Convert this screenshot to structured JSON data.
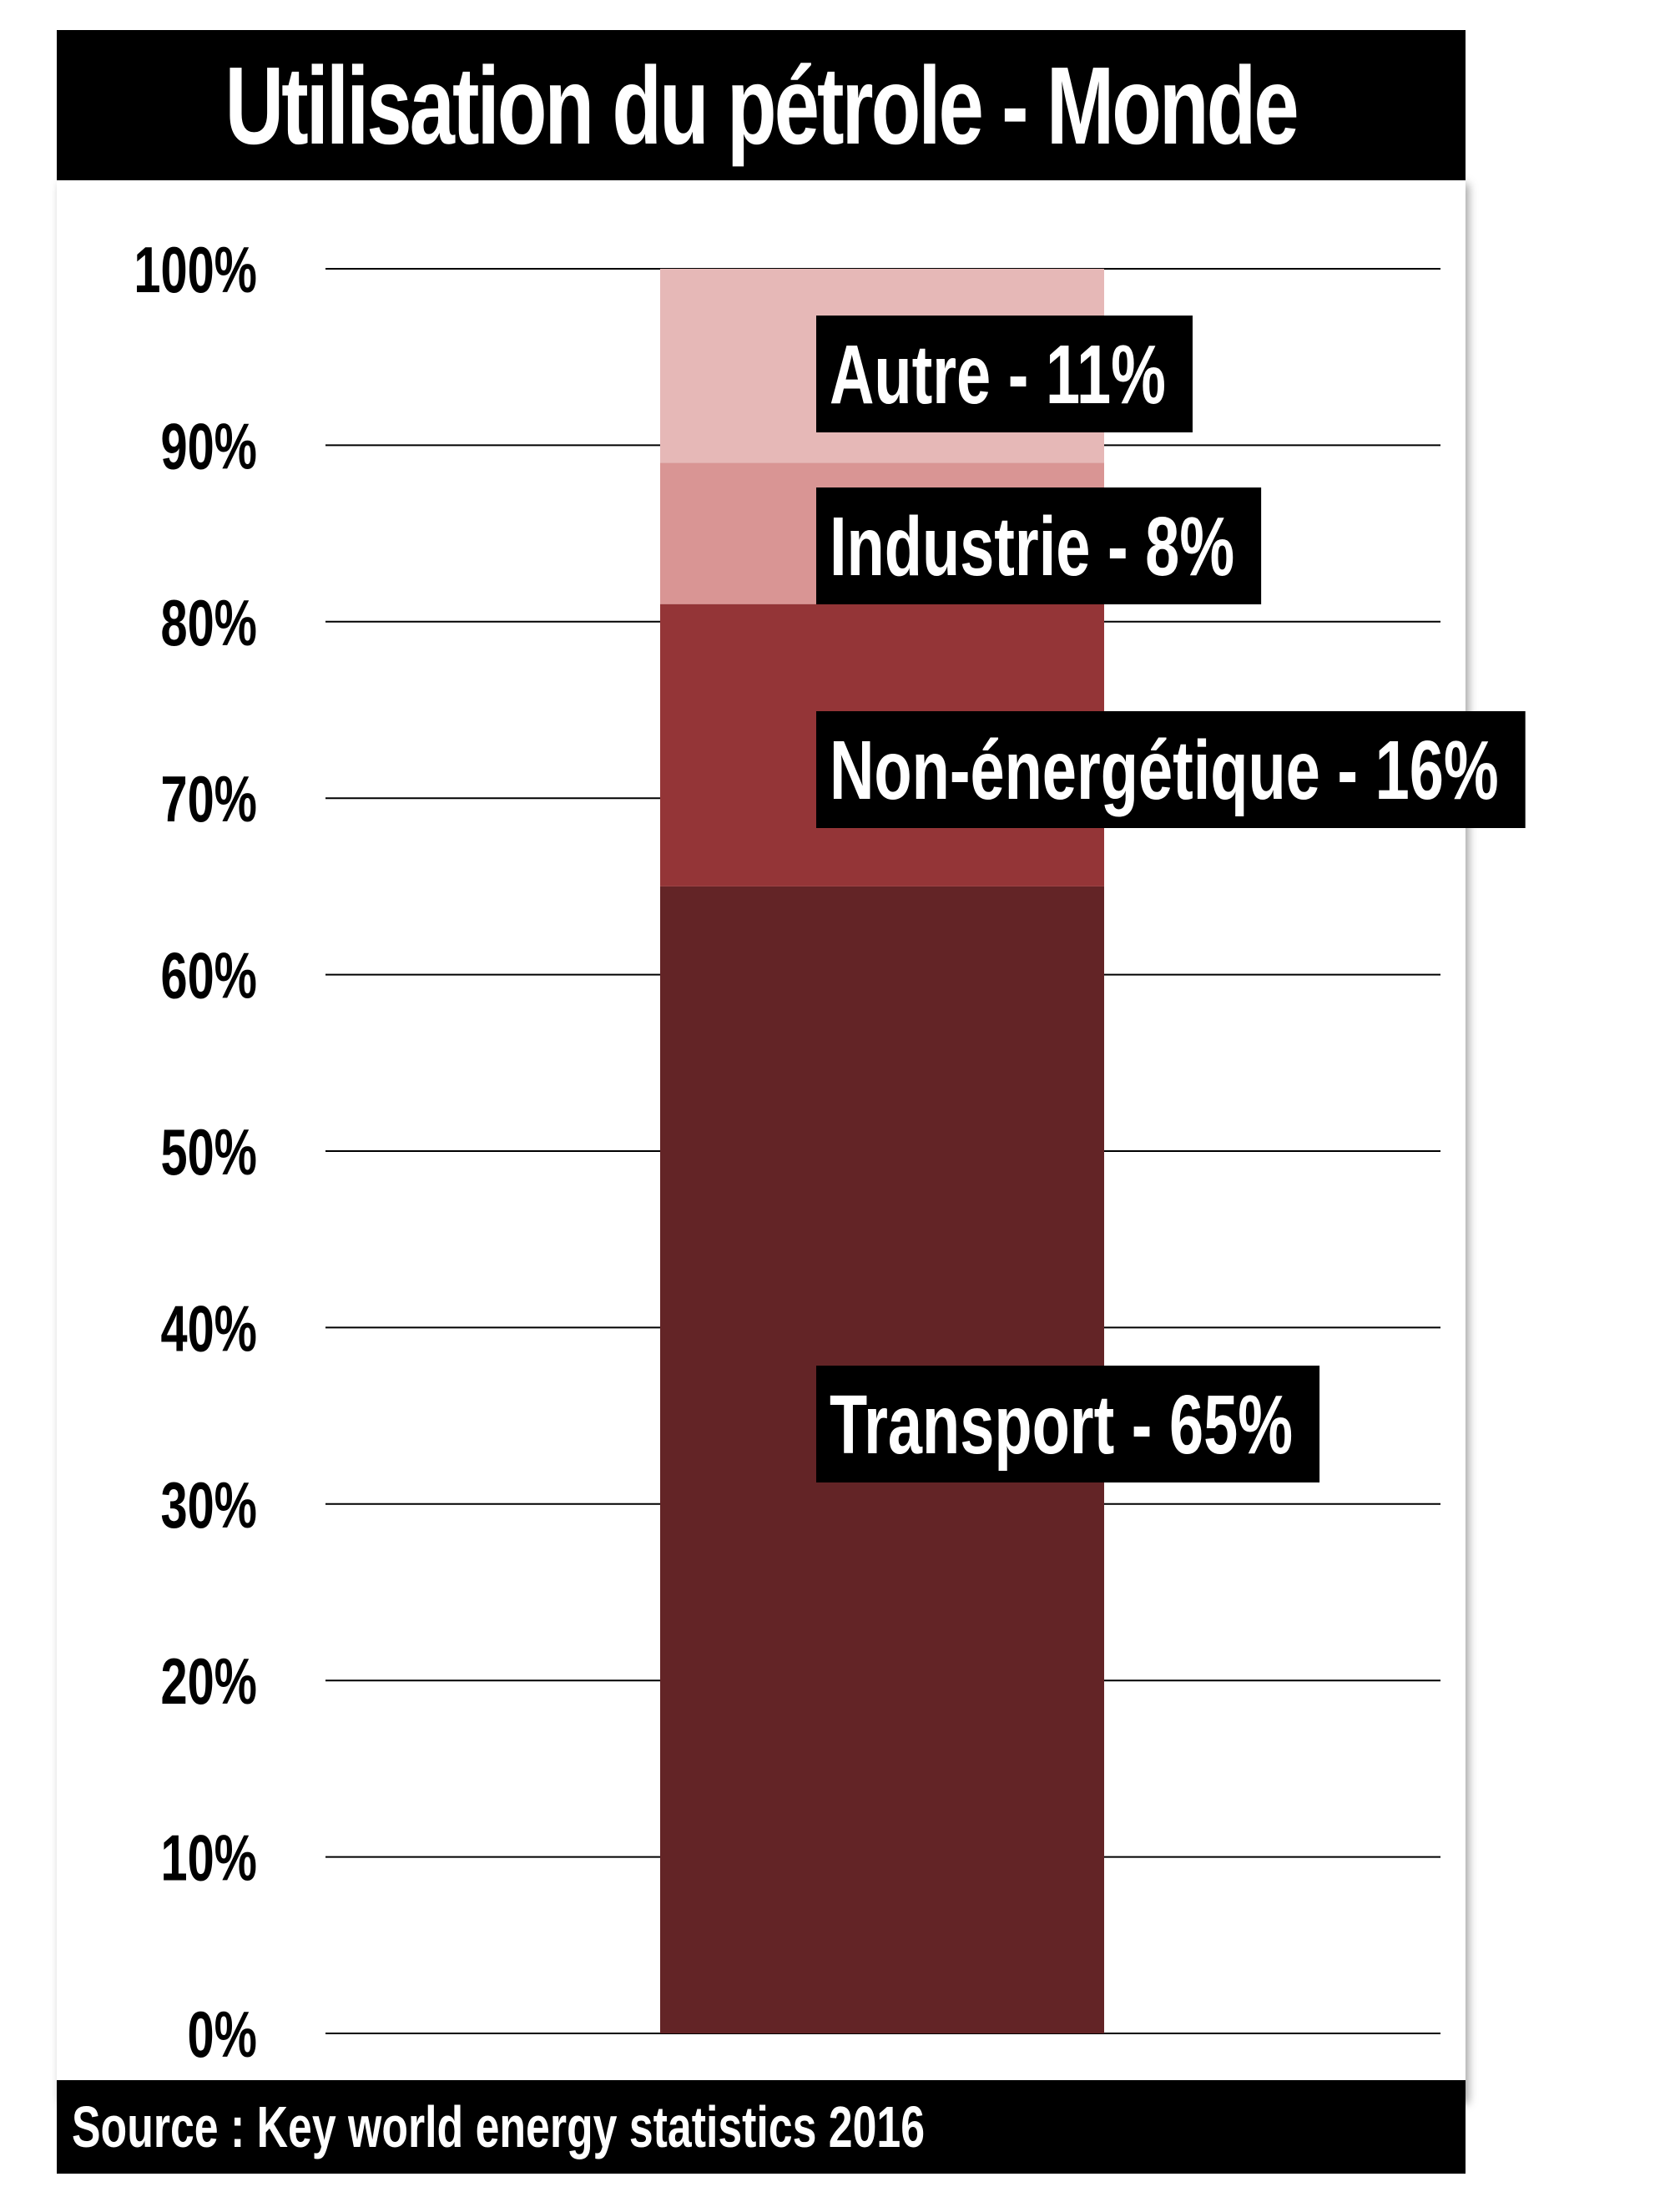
{
  "chart_data": {
    "type": "bar",
    "stacked": true,
    "title": "Utilisation du pétrole - Monde",
    "source": "Source : Key world energy statistics 2016",
    "ylim": [
      0,
      100
    ],
    "yticks": [
      "0%",
      "10%",
      "20%",
      "30%",
      "40%",
      "50%",
      "60%",
      "70%",
      "80%",
      "90%",
      "100%"
    ],
    "grid": true,
    "series": [
      {
        "name": "Transport",
        "value": 65,
        "label": "Transport - 65%",
        "color": "#632426"
      },
      {
        "name": "Non-énergétique",
        "value": 16,
        "label": "Non-énergétique - 16%",
        "color": "#943537"
      },
      {
        "name": "Industrie",
        "value": 8,
        "label": "Industrie - 8%",
        "color": "#d99594"
      },
      {
        "name": "Autre",
        "value": 11,
        "label": "Autre - 11%",
        "color": "#e6b8b7"
      }
    ]
  }
}
